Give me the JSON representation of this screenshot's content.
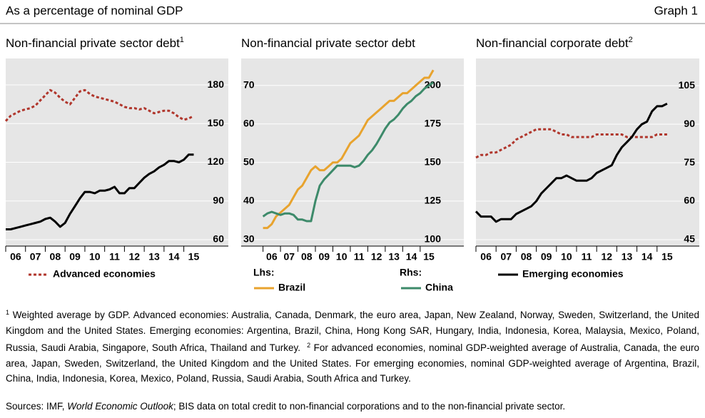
{
  "header": {
    "title": "As a percentage of nominal GDP",
    "label": "Graph 1"
  },
  "chart_data": [
    {
      "type": "line",
      "title": "Non-financial private sector debt",
      "title_note": "1",
      "x": [
        2006,
        2006.25,
        2006.5,
        2006.75,
        2007,
        2007.25,
        2007.5,
        2007.75,
        2008,
        2008.25,
        2008.5,
        2008.75,
        2009,
        2009.25,
        2009.5,
        2009.75,
        2010,
        2010.25,
        2010.5,
        2010.75,
        2011,
        2011.25,
        2011.5,
        2011.75,
        2012,
        2012.25,
        2012.5,
        2012.75,
        2013,
        2013.25,
        2013.5,
        2013.75,
        2014,
        2014.25,
        2014.5,
        2014.75,
        2015,
        2015.25,
        2015.5
      ],
      "series": [
        {
          "name": "Advanced economies",
          "color": "#b0362c",
          "dash": true,
          "values": [
            152,
            156,
            158,
            160,
            161,
            162,
            164,
            168,
            172,
            176,
            174,
            170,
            167,
            165,
            170,
            175,
            176,
            173,
            171,
            170,
            169,
            168,
            167,
            165,
            163,
            162,
            162,
            161,
            162,
            160,
            158,
            159,
            160,
            160,
            158,
            155,
            153,
            154,
            156
          ]
        },
        {
          "color": "#000000",
          "dash": false,
          "values": [
            68,
            68,
            69,
            70,
            71,
            72,
            73,
            74,
            76,
            77,
            74,
            70,
            73,
            80,
            86,
            92,
            97,
            97,
            96,
            98,
            98,
            99,
            101,
            96,
            96,
            100,
            100,
            104,
            108,
            111,
            113,
            116,
            118,
            121,
            121,
            120,
            122,
            126,
            126
          ]
        }
      ],
      "xlim": [
        2006,
        2017.25
      ],
      "xticks": [
        {
          "value": 2006,
          "label": "06"
        },
        {
          "value": 2007,
          "label": "07"
        },
        {
          "value": 2008,
          "label": "08"
        },
        {
          "value": 2009,
          "label": "09"
        },
        {
          "value": 2010,
          "label": "10"
        },
        {
          "value": 2011,
          "label": "11"
        },
        {
          "value": 2012,
          "label": "12"
        },
        {
          "value": 2013,
          "label": "13"
        },
        {
          "value": 2014,
          "label": "14"
        },
        {
          "value": 2015,
          "label": "15"
        }
      ],
      "ylim": [
        55,
        200.5
      ],
      "yticks": [
        60,
        90,
        120,
        150,
        180
      ],
      "yaxis_side": "right",
      "grid": true
    },
    {
      "type": "line",
      "title": "Non-financial private sector debt",
      "x": [
        2006,
        2006.25,
        2006.5,
        2006.75,
        2007,
        2007.25,
        2007.5,
        2007.75,
        2008,
        2008.25,
        2008.5,
        2008.75,
        2009,
        2009.25,
        2009.5,
        2009.75,
        2010,
        2010.25,
        2010.5,
        2010.75,
        2011,
        2011.25,
        2011.5,
        2011.75,
        2012,
        2012.25,
        2012.5,
        2012.75,
        2013,
        2013.25,
        2013.5,
        2013.75,
        2014,
        2014.25,
        2014.5,
        2014.75,
        2015,
        2015.25,
        2015.5,
        2015.75
      ],
      "series": [
        {
          "name": "Brazil",
          "color": "#e8a32e",
          "dash": false,
          "values": [
            33,
            33,
            34,
            36,
            37,
            38,
            39,
            41,
            43,
            44,
            46,
            48,
            49,
            48,
            48,
            49,
            50,
            50,
            51,
            53,
            55,
            56,
            57,
            59,
            61,
            62,
            63,
            64,
            65,
            66,
            66,
            67,
            68,
            68,
            69,
            70,
            71,
            72,
            72,
            74
          ]
        },
        {
          "name": "China",
          "color": "#3d8a6a",
          "dash": false,
          "axis": "y2",
          "values": [
            115,
            117,
            118,
            117,
            116,
            117,
            117,
            116,
            113,
            113,
            112,
            112,
            125,
            135,
            139,
            142,
            145,
            148,
            148,
            148,
            148,
            147,
            148,
            151,
            155,
            158,
            162,
            167,
            172,
            176,
            178,
            181,
            185,
            188,
            190,
            193,
            195,
            198,
            200,
            202
          ]
        }
      ],
      "y_label": "Lhs:",
      "y2_label": "Rhs:",
      "xlim": [
        2004.75,
        2017.5
      ],
      "xticks": [
        {
          "value": 2006,
          "label": "06"
        },
        {
          "value": 2007,
          "label": "07"
        },
        {
          "value": 2008,
          "label": "08"
        },
        {
          "value": 2009,
          "label": "09"
        },
        {
          "value": 2010,
          "label": "10"
        },
        {
          "value": 2011,
          "label": "11"
        },
        {
          "value": 2012,
          "label": "12"
        },
        {
          "value": 2013,
          "label": "13"
        },
        {
          "value": 2014,
          "label": "14"
        },
        {
          "value": 2015,
          "label": "15"
        }
      ],
      "ylim": [
        28.3,
        77
      ],
      "yticks": [
        30,
        40,
        50,
        60,
        70
      ],
      "yaxis_side": "left",
      "y2lim": [
        95.8,
        217.5
      ],
      "y2ticks": [
        100,
        125,
        150,
        175,
        200
      ],
      "grid": true
    },
    {
      "type": "line",
      "title": "Non-financial corporate debt",
      "title_note": "2",
      "x": [
        2006,
        2006.25,
        2006.5,
        2006.75,
        2007,
        2007.25,
        2007.5,
        2007.75,
        2008,
        2008.25,
        2008.5,
        2008.75,
        2009,
        2009.25,
        2009.5,
        2009.75,
        2010,
        2010.25,
        2010.5,
        2010.75,
        2011,
        2011.25,
        2011.5,
        2011.75,
        2012,
        2012.25,
        2012.5,
        2012.75,
        2013,
        2013.25,
        2013.5,
        2013.75,
        2014,
        2014.25,
        2014.5,
        2014.75,
        2015,
        2015.25,
        2015.5
      ],
      "series": [
        {
          "color": "#b0362c",
          "dash": true,
          "values": [
            77,
            78,
            78,
            79,
            79,
            80,
            81,
            82,
            84,
            85,
            86,
            87,
            88,
            88,
            88,
            88,
            87,
            86,
            86,
            85,
            85,
            85,
            85,
            85,
            86,
            86,
            86,
            86,
            86,
            86,
            85,
            85,
            85,
            85,
            85,
            85,
            86,
            86,
            86
          ]
        },
        {
          "name": "Emerging economies",
          "color": "#000000",
          "dash": false,
          "values": [
            56,
            54,
            54,
            54,
            52,
            53,
            53,
            53,
            55,
            56,
            57,
            58,
            60,
            63,
            65,
            67,
            69,
            69,
            70,
            69,
            68,
            68,
            68,
            69,
            71,
            72,
            73,
            74,
            78,
            81,
            83,
            85,
            88,
            90,
            91,
            95,
            97,
            97,
            98
          ]
        }
      ],
      "xlim": [
        2006,
        2017.1
      ],
      "xticks": [
        {
          "value": 2006,
          "label": "06"
        },
        {
          "value": 2007,
          "label": "07"
        },
        {
          "value": 2008,
          "label": "08"
        },
        {
          "value": 2009,
          "label": "09"
        },
        {
          "value": 2010,
          "label": "10"
        },
        {
          "value": 2011,
          "label": "11"
        },
        {
          "value": 2012,
          "label": "12"
        },
        {
          "value": 2013,
          "label": "13"
        },
        {
          "value": 2014,
          "label": "14"
        },
        {
          "value": 2015,
          "label": "15"
        }
      ],
      "ylim": [
        42.5,
        115.6
      ],
      "yticks": [
        45,
        60,
        75,
        90,
        105
      ],
      "yaxis_side": "right",
      "grid": true
    }
  ],
  "notes": [
    {
      "marker": "1",
      "text": "Weighted average by GDP. Advanced economies: Australia, Canada, Denmark, the euro area, Japan, New Zealand, Norway, Sweden, Switzerland, the United Kingdom and the United States. Emerging economies: Argentina, Brazil, China, Hong Kong SAR, Hungary, India, Indonesia, Korea, Malaysia, Mexico, Poland, Russia, Saudi Arabia, Singapore, South Africa, Thailand and Turkey."
    },
    {
      "marker": "2",
      "text": "For advanced economies, nominal GDP-weighted average of Australia, Canada, the euro area, Japan, Sweden, Switzerland, the United Kingdom and the United States. For emerging economies, nominal GDP-weighted average of Argentina, Brazil, China, India, Indonesia, Korea, Mexico, Poland, Russia, Saudi Arabia, South Africa and Turkey."
    }
  ],
  "sources": {
    "prefix": "Sources: IMF, ",
    "italic": "World Economic Outlook",
    "rest": "; BIS data on total credit to non-financial corporations and to the non-financial private sector."
  }
}
